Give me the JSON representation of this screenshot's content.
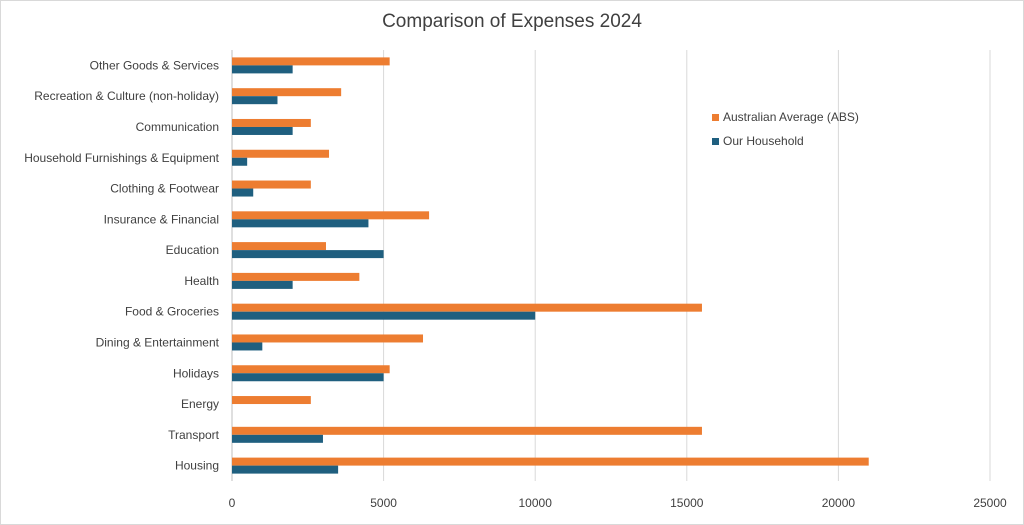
{
  "chart_data": {
    "type": "bar",
    "orientation": "horizontal",
    "title": "Comparison of Expenses 2024",
    "categories": [
      "Housing",
      "Transport",
      "Energy",
      "Holidays",
      "Dining & Entertainment",
      "Food & Groceries",
      "Health",
      "Education",
      "Insurance & Financial",
      "Clothing & Footwear",
      "Household Furnishings & Equipment",
      "Communication",
      "Recreation & Culture (non-holiday)",
      "Other Goods & Services"
    ],
    "series": [
      {
        "name": "Australian Average (ABS)",
        "color": "#ed7d31",
        "values": [
          21000,
          15500,
          2600,
          5200,
          6300,
          15500,
          4200,
          3100,
          6500,
          2600,
          3200,
          2600,
          3600,
          5200
        ]
      },
      {
        "name": "Our Household",
        "color": "#1f5f7f",
        "values": [
          3500,
          3000,
          0,
          5000,
          1000,
          10000,
          2000,
          5000,
          4500,
          700,
          500,
          2000,
          1500,
          2000
        ]
      }
    ],
    "xlim": [
      0,
      25000
    ],
    "xticks": [
      "0",
      "5000",
      "10000",
      "15000",
      "20000",
      "25000"
    ],
    "grid": "vertical",
    "legend_position": "right"
  }
}
